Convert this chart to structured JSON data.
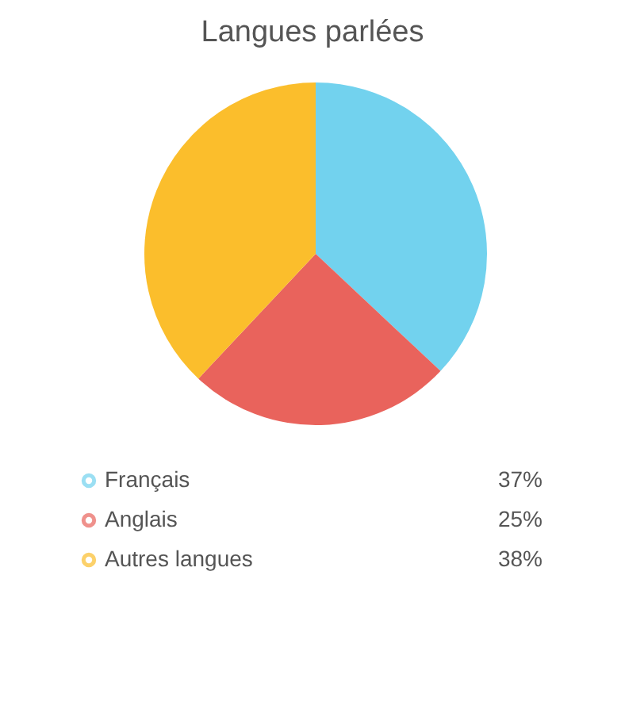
{
  "chart_data": {
    "type": "pie",
    "title": "Langues parlées",
    "categories": [
      "Français",
      "Anglais",
      "Autres langues"
    ],
    "values": [
      37,
      25,
      38
    ],
    "colors": [
      "#72d2ee",
      "#e9635c",
      "#fbbe2c"
    ],
    "value_labels": [
      "37%",
      "25%",
      "38%"
    ],
    "legend": "bottom"
  }
}
